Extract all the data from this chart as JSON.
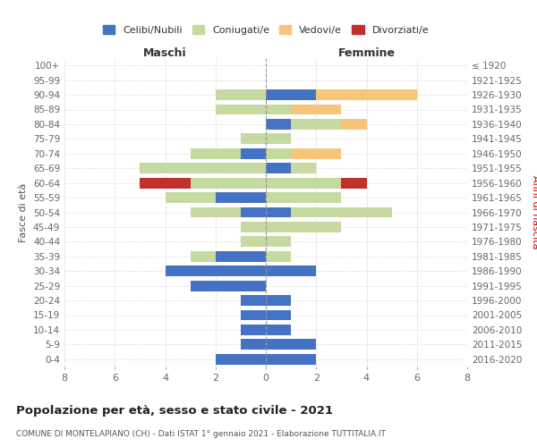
{
  "age_groups": [
    "0-4",
    "5-9",
    "10-14",
    "15-19",
    "20-24",
    "25-29",
    "30-34",
    "35-39",
    "40-44",
    "45-49",
    "50-54",
    "55-59",
    "60-64",
    "65-69",
    "70-74",
    "75-79",
    "80-84",
    "85-89",
    "90-94",
    "95-99",
    "100+"
  ],
  "birth_years": [
    "2016-2020",
    "2011-2015",
    "2006-2010",
    "2001-2005",
    "1996-2000",
    "1991-1995",
    "1986-1990",
    "1981-1985",
    "1976-1980",
    "1971-1975",
    "1966-1970",
    "1961-1965",
    "1956-1960",
    "1951-1955",
    "1946-1950",
    "1941-1945",
    "1936-1940",
    "1931-1935",
    "1926-1930",
    "1921-1925",
    "≤ 1920"
  ],
  "maschi": {
    "celibi": [
      2,
      1,
      1,
      1,
      1,
      3,
      4,
      2,
      0,
      0,
      1,
      2,
      0,
      0,
      1,
      0,
      0,
      0,
      0,
      0,
      0
    ],
    "coniugati": [
      0,
      0,
      0,
      0,
      0,
      0,
      0,
      1,
      1,
      1,
      2,
      2,
      3,
      5,
      2,
      1,
      0,
      2,
      2,
      0,
      0
    ],
    "vedovi": [
      0,
      0,
      0,
      0,
      0,
      0,
      0,
      0,
      0,
      0,
      0,
      0,
      0,
      0,
      0,
      0,
      0,
      0,
      0,
      0,
      0
    ],
    "divorziati": [
      0,
      0,
      0,
      0,
      0,
      0,
      0,
      0,
      0,
      0,
      0,
      0,
      2,
      0,
      0,
      0,
      0,
      0,
      0,
      0,
      0
    ]
  },
  "femmine": {
    "celibi": [
      2,
      2,
      1,
      1,
      1,
      0,
      2,
      0,
      0,
      0,
      1,
      0,
      0,
      1,
      0,
      0,
      1,
      0,
      2,
      0,
      0
    ],
    "coniugati": [
      0,
      0,
      0,
      0,
      0,
      0,
      0,
      1,
      1,
      3,
      4,
      3,
      3,
      1,
      1,
      1,
      2,
      1,
      0,
      0,
      0
    ],
    "vedovi": [
      0,
      0,
      0,
      0,
      0,
      0,
      0,
      0,
      0,
      0,
      0,
      0,
      0,
      0,
      2,
      0,
      1,
      2,
      4,
      0,
      0
    ],
    "divorziati": [
      0,
      0,
      0,
      0,
      0,
      0,
      0,
      0,
      0,
      0,
      0,
      0,
      1,
      0,
      0,
      0,
      0,
      0,
      0,
      0,
      0
    ]
  },
  "color_celibi": "#4472c4",
  "color_coniugati": "#c5d9a0",
  "color_vedovi": "#f5c57a",
  "color_divorziati": "#c0312b",
  "title": "Popolazione per età, sesso e stato civile - 2021",
  "subtitle": "COMUNE DI MONTELAPIANO (CH) - Dati ISTAT 1° gennaio 2021 - Elaborazione TUTTITALIA.IT",
  "xlabel_left": "Maschi",
  "xlabel_right": "Femmine",
  "ylabel_left": "Fasce di età",
  "ylabel_right": "Anni di nascita",
  "xlim": 8,
  "background_color": "#ffffff",
  "grid_color": "#dddddd"
}
